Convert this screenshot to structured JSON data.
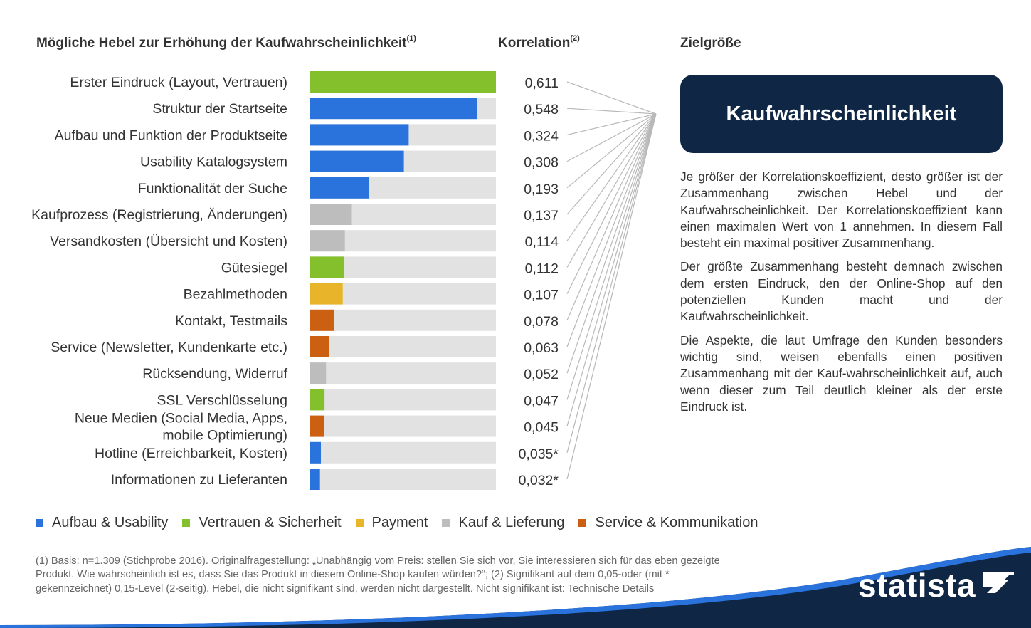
{
  "headers": {
    "levers": "Mögliche Hebel zur Erhöhung der Kaufwahrscheinlichkeit",
    "levers_note": "(1)",
    "correlation": "Korrelation",
    "correlation_note": "(2)",
    "target": "Zielgröße"
  },
  "target_box": {
    "label": "Kaufwahrscheinlichkeit"
  },
  "description": [
    "Je größer der Korrelationskoeffizient, desto größer ist der Zusammenhang zwischen Hebel und der Kaufwahrscheinlichkeit. Der Korrelationskoeffizient kann einen maximalen Wert von 1 annehmen. In diesem Fall besteht ein maximal positiver Zusammenhang.",
    "Der größte Zusammenhang besteht demnach zwischen dem ersten Eindruck, den der Online-Shop auf den potenziellen Kunden macht und der Kaufwahrscheinlichkeit.",
    "Die Aspekte, die laut Umfrage den Kunden besonders wichtig sind, weisen ebenfalls einen positiven Zusammenhang mit der Kauf-wahrscheinlichkeit auf, auch wenn dieser zum Teil deutlich kleiner als der erste Eindruck ist."
  ],
  "colors": {
    "Aufbau & Usability": "#2a73dd",
    "Vertrauen & Sicherheit": "#84bf2c",
    "Payment": "#e8b52a",
    "Kauf & Lieferung": "#bdbdbd",
    "Service & Kommunikation": "#cc6012",
    "track": "#e2e2e2",
    "connector": "#b8b8b8"
  },
  "legend": [
    {
      "label": "Aufbau & Usability",
      "color": "#2a73dd"
    },
    {
      "label": "Vertrauen & Sicherheit",
      "color": "#84bf2c"
    },
    {
      "label": "Payment",
      "color": "#e8b52a"
    },
    {
      "label": "Kauf & Lieferung",
      "color": "#bdbdbd"
    },
    {
      "label": "Service & Kommunikation",
      "color": "#cc6012"
    }
  ],
  "chart_data": {
    "type": "bar",
    "orientation": "horizontal",
    "xlim": [
      0,
      0.611
    ],
    "grid": false,
    "legend_position": "bottom",
    "categories": [
      "Erster Eindruck  (Layout, Vertrauen)",
      "Struktur der Startseite",
      "Aufbau und Funktion der Produktseite",
      "Usability Katalogsystem",
      "Funktionalität der Suche",
      "Kaufprozess (Registrierung, Änderungen)",
      "Versandkosten (Übersicht und Kosten)",
      "Gütesiegel",
      "Bezahlmethoden",
      "Kontakt, Testmails",
      "Service (Newsletter, Kundenkarte etc.)",
      "Rücksendung, Widerruf",
      "SSL Verschlüsselung",
      "Neue Medien (Social Media, Apps,\nmobile Optimierung)",
      "Hotline (Erreichbarkeit, Kosten)",
      "Informationen zu Lieferanten"
    ],
    "values": [
      0.611,
      0.548,
      0.324,
      0.308,
      0.193,
      0.137,
      0.114,
      0.112,
      0.107,
      0.078,
      0.063,
      0.052,
      0.047,
      0.045,
      0.035,
      0.032
    ],
    "value_labels": [
      "0,611",
      "0,548",
      "0,324",
      "0,308",
      "0,193",
      "0,137",
      "0,114",
      "0,112",
      "0,107",
      "0,078",
      "0,063",
      "0,052",
      "0,047",
      "0,045",
      "0,035*",
      "0,032*"
    ],
    "groups": [
      "Vertrauen & Sicherheit",
      "Aufbau & Usability",
      "Aufbau & Usability",
      "Aufbau & Usability",
      "Aufbau & Usability",
      "Kauf & Lieferung",
      "Kauf & Lieferung",
      "Vertrauen & Sicherheit",
      "Payment",
      "Service & Kommunikation",
      "Service & Kommunikation",
      "Kauf & Lieferung",
      "Vertrauen & Sicherheit",
      "Service & Kommunikation",
      "Aufbau & Usability",
      "Aufbau & Usability"
    ]
  },
  "footnote": "(1) Basis: n=1.309 (Stichprobe 2016). Originalfragestellung: „Unabhängig vom Preis: stellen Sie sich vor, Sie interessieren sich für das eben gezeigte Produkt. Wie wahrscheinlich ist es, dass Sie das Produkt in diesem Online-Shop kaufen würden?“; (2) Signifikant auf dem 0,05-oder (mit * gekennzeichnet) 0,15-Level (2-seitig). Hebel, die nicht signifikant sind, werden nicht dargestellt. Nicht signifikant ist: Technische Details",
  "brand": {
    "name": "statista"
  }
}
